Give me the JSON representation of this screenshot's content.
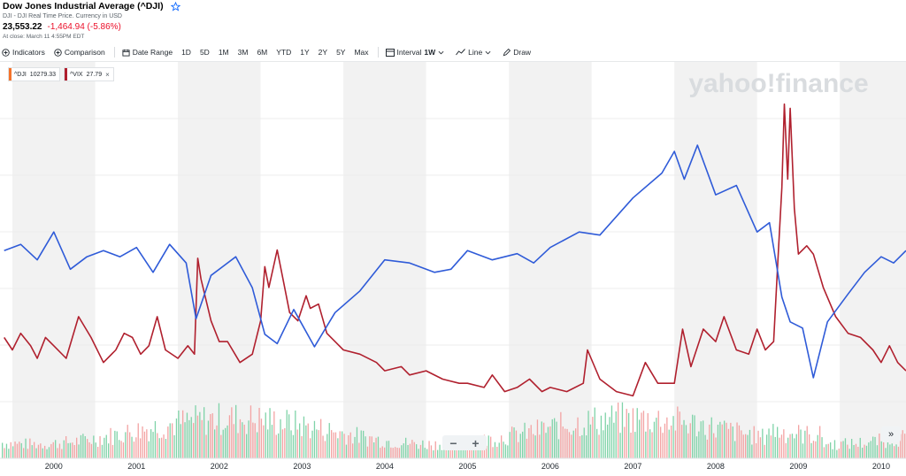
{
  "header": {
    "title": "Dow Jones Industrial Average (^DJI)",
    "subtitle": "DJI - DJI Real Time Price. Currency in USD",
    "price": "23,553.22",
    "change": "-1,464.94 (-5.86%)",
    "close_note": "At close: March 11 4:55PM EDT"
  },
  "toolbar": {
    "indicators": "Indicators",
    "comparison": "Comparison",
    "date_range": "Date Range",
    "ranges": [
      "1D",
      "5D",
      "1M",
      "3M",
      "6M",
      "YTD",
      "1Y",
      "2Y",
      "5Y",
      "Max"
    ],
    "interval_label": "Interval",
    "interval_value": "1W",
    "line": "Line",
    "draw": "Draw"
  },
  "watermark": "yahoo!finance",
  "legend": [
    {
      "symbol": "^DJI",
      "value": "10279.33",
      "color": "#f5732b"
    },
    {
      "symbol": "^VIX",
      "value": "27.79",
      "color": "#b0202e"
    }
  ],
  "colors": {
    "dji_line": "#2f5bd8",
    "vix_line": "#b0202e",
    "vol_up": "#7fd3a8",
    "vol_down": "#f3a3a3",
    "band": "#f2f2f2"
  },
  "icons": {
    "star": "star-icon",
    "indicators": "plus-circle-icon",
    "comparison": "plus-circle-icon",
    "date_range": "calendar-icon",
    "interval": "interval-icon",
    "line": "line-chart-icon",
    "draw": "pencil-icon",
    "zoom_out": "minus-icon",
    "zoom_in": "plus-icon",
    "scroll": "double-chevron-right-icon"
  },
  "controls": {
    "zoom_out": "−",
    "zoom_in": "+",
    "scroll": "»"
  },
  "chart_data": {
    "type": "line",
    "x_ticks": [
      "2000",
      "2001",
      "2002",
      "2003",
      "2004",
      "2005",
      "2006",
      "2007",
      "2008",
      "2009",
      "2010"
    ],
    "xlim": [
      1999.35,
      2010.3
    ],
    "grid": "alternating yearly bands",
    "legend_position": "top-left",
    "series": [
      {
        "name": "^DJI",
        "points": [
          [
            1999.4,
            10700
          ],
          [
            1999.6,
            10900
          ],
          [
            1999.8,
            10400
          ],
          [
            2000.0,
            11300
          ],
          [
            2000.2,
            10100
          ],
          [
            2000.4,
            10500
          ],
          [
            2000.6,
            10700
          ],
          [
            2000.8,
            10500
          ],
          [
            2001.0,
            10800
          ],
          [
            2001.2,
            10000
          ],
          [
            2001.4,
            10900
          ],
          [
            2001.6,
            10300
          ],
          [
            2001.72,
            8500
          ],
          [
            2001.9,
            9900
          ],
          [
            2002.2,
            10500
          ],
          [
            2002.4,
            9500
          ],
          [
            2002.55,
            8000
          ],
          [
            2002.7,
            7700
          ],
          [
            2002.9,
            8800
          ],
          [
            2003.15,
            7600
          ],
          [
            2003.4,
            8700
          ],
          [
            2003.7,
            9400
          ],
          [
            2004.0,
            10400
          ],
          [
            2004.3,
            10300
          ],
          [
            2004.6,
            10000
          ],
          [
            2004.8,
            10100
          ],
          [
            2005.0,
            10700
          ],
          [
            2005.3,
            10400
          ],
          [
            2005.6,
            10600
          ],
          [
            2005.8,
            10300
          ],
          [
            2006.0,
            10800
          ],
          [
            2006.35,
            11300
          ],
          [
            2006.6,
            11200
          ],
          [
            2007.0,
            12400
          ],
          [
            2007.35,
            13200
          ],
          [
            2007.5,
            13900
          ],
          [
            2007.62,
            13000
          ],
          [
            2007.78,
            14100
          ],
          [
            2008.0,
            12500
          ],
          [
            2008.25,
            12800
          ],
          [
            2008.5,
            11300
          ],
          [
            2008.65,
            11600
          ],
          [
            2008.8,
            9200
          ],
          [
            2008.9,
            8400
          ],
          [
            2009.05,
            8200
          ],
          [
            2009.18,
            6600
          ],
          [
            2009.35,
            8400
          ],
          [
            2009.6,
            9300
          ],
          [
            2009.8,
            10000
          ],
          [
            2010.0,
            10500
          ],
          [
            2010.15,
            10300
          ],
          [
            2010.3,
            10700
          ]
        ]
      },
      {
        "name": "^VIX",
        "points": [
          [
            1999.4,
            24
          ],
          [
            1999.5,
            21
          ],
          [
            1999.6,
            25
          ],
          [
            1999.72,
            22
          ],
          [
            1999.8,
            19
          ],
          [
            1999.9,
            24
          ],
          [
            2000.0,
            22
          ],
          [
            2000.15,
            19
          ],
          [
            2000.3,
            29
          ],
          [
            2000.45,
            24
          ],
          [
            2000.6,
            18
          ],
          [
            2000.75,
            21
          ],
          [
            2000.85,
            25
          ],
          [
            2000.95,
            24
          ],
          [
            2001.05,
            20
          ],
          [
            2001.15,
            22
          ],
          [
            2001.25,
            29
          ],
          [
            2001.35,
            21
          ],
          [
            2001.5,
            19
          ],
          [
            2001.62,
            22
          ],
          [
            2001.7,
            20
          ],
          [
            2001.74,
            43
          ],
          [
            2001.78,
            38
          ],
          [
            2001.9,
            28
          ],
          [
            2002.0,
            23
          ],
          [
            2002.1,
            23
          ],
          [
            2002.25,
            18
          ],
          [
            2002.4,
            20
          ],
          [
            2002.5,
            28
          ],
          [
            2002.55,
            41
          ],
          [
            2002.6,
            36
          ],
          [
            2002.7,
            45
          ],
          [
            2002.78,
            37
          ],
          [
            2002.85,
            30
          ],
          [
            2002.95,
            28
          ],
          [
            2003.05,
            34
          ],
          [
            2003.1,
            31
          ],
          [
            2003.2,
            32
          ],
          [
            2003.3,
            25
          ],
          [
            2003.5,
            21
          ],
          [
            2003.7,
            20
          ],
          [
            2003.9,
            18
          ],
          [
            2004.0,
            16
          ],
          [
            2004.2,
            17
          ],
          [
            2004.3,
            15
          ],
          [
            2004.5,
            16
          ],
          [
            2004.7,
            14
          ],
          [
            2004.9,
            13
          ],
          [
            2005.0,
            13
          ],
          [
            2005.2,
            12
          ],
          [
            2005.3,
            15
          ],
          [
            2005.45,
            11
          ],
          [
            2005.6,
            12
          ],
          [
            2005.75,
            14
          ],
          [
            2005.9,
            11
          ],
          [
            2006.0,
            12
          ],
          [
            2006.2,
            11
          ],
          [
            2006.4,
            13
          ],
          [
            2006.45,
            21
          ],
          [
            2006.6,
            14
          ],
          [
            2006.8,
            11
          ],
          [
            2007.0,
            10
          ],
          [
            2007.15,
            18
          ],
          [
            2007.3,
            13
          ],
          [
            2007.5,
            13
          ],
          [
            2007.6,
            26
          ],
          [
            2007.7,
            17
          ],
          [
            2007.85,
            26
          ],
          [
            2008.0,
            23
          ],
          [
            2008.1,
            29
          ],
          [
            2008.25,
            21
          ],
          [
            2008.4,
            20
          ],
          [
            2008.5,
            26
          ],
          [
            2008.6,
            21
          ],
          [
            2008.7,
            23
          ],
          [
            2008.75,
            42
          ],
          [
            2008.8,
            60
          ],
          [
            2008.83,
            80
          ],
          [
            2008.87,
            62
          ],
          [
            2008.9,
            79
          ],
          [
            2008.95,
            55
          ],
          [
            2009.0,
            44
          ],
          [
            2009.1,
            46
          ],
          [
            2009.18,
            44
          ],
          [
            2009.3,
            36
          ],
          [
            2009.45,
            29
          ],
          [
            2009.6,
            25
          ],
          [
            2009.75,
            24
          ],
          [
            2009.9,
            21
          ],
          [
            2010.0,
            18
          ],
          [
            2010.1,
            22
          ],
          [
            2010.2,
            18
          ],
          [
            2010.3,
            16
          ]
        ]
      }
    ],
    "volume": "histogram of weekly volume bars, green and red"
  }
}
